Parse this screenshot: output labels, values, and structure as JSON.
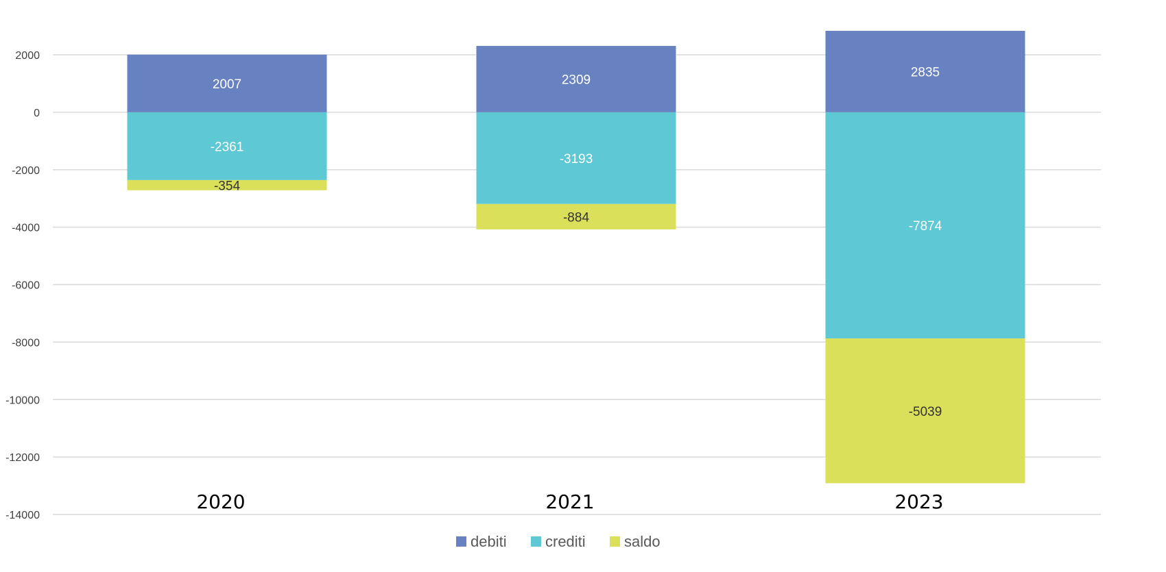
{
  "chart_data": {
    "type": "bar",
    "stacked": true,
    "categories": [
      "2020",
      "2021",
      "2023"
    ],
    "series": [
      {
        "name": "debiti",
        "values": [
          2007,
          2309,
          2835
        ],
        "color": "#6881c0",
        "label_color": "#ffffff"
      },
      {
        "name": "crediti",
        "values": [
          -2361,
          -3193,
          -7874
        ],
        "color": "#5ec8d4",
        "label_color": "#ffffff"
      },
      {
        "name": "saldo",
        "values": [
          -354,
          -884,
          -5039
        ],
        "color": "#dbe05a",
        "label_color": "#333333"
      }
    ],
    "y_ticks": [
      2000,
      0,
      -2000,
      -4000,
      -6000,
      -8000,
      -10000,
      -12000,
      -14000
    ],
    "ylim": [
      -14000,
      2000
    ],
    "grid": true,
    "legend": "bottom",
    "title": "",
    "xlabel": "",
    "ylabel": ""
  }
}
